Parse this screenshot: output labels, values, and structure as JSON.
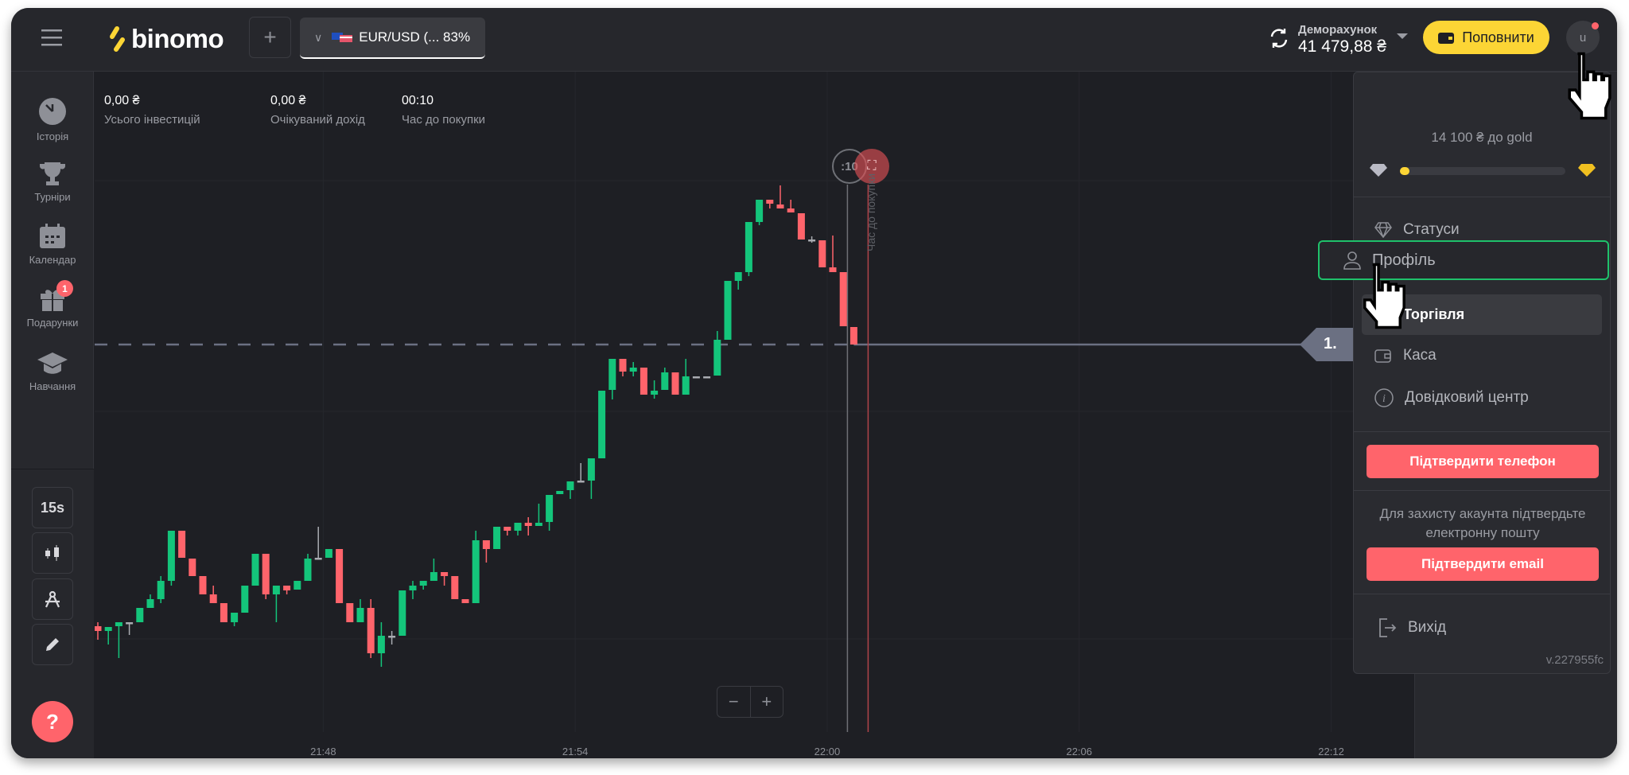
{
  "header": {
    "logo": "binomo",
    "add_tab": "+",
    "pair_label": "EUR/USD (... 83%",
    "account_type": "Деморахунок",
    "balance": "41 479,88 ₴",
    "deposit_label": "Поповнити",
    "avatar_letter": "u"
  },
  "stats": [
    {
      "value": "0,00 ₴",
      "label": "Усього інвестицій"
    },
    {
      "value": "0,00 ₴",
      "label": "Очікуваний дохід"
    },
    {
      "value": "00:10",
      "label": "Час до покупки"
    }
  ],
  "sidebar": {
    "items": [
      {
        "label": "Історія",
        "icon": "clock-icon"
      },
      {
        "label": "Турніри",
        "icon": "trophy-icon"
      },
      {
        "label": "Календар",
        "icon": "calendar-icon"
      },
      {
        "label": "Подарунки",
        "icon": "gift-icon",
        "badge": "1"
      },
      {
        "label": "Навчання",
        "icon": "graduation-cap-icon"
      }
    ],
    "timeframe": "15s",
    "help": "?"
  },
  "chart": {
    "timer": ":10",
    "purchase_line_label": "Час до покупки",
    "price_tag": "1.",
    "zoom_out": "−",
    "zoom_in": "+"
  },
  "chart_data": {
    "type": "candlestick",
    "interval": "15s",
    "first_candle_time": "21:42:38",
    "x_ticks": [
      "21:48",
      "21:54",
      "22:00",
      "22:06",
      "22:12"
    ],
    "entry_price": 1.08,
    "colors": {
      "up": "#14c57b",
      "down": "#ff646b",
      "flat": "#a9abb1"
    },
    "candles_ohlc": [
      [
        1.07646,
        1.07651,
        1.07629,
        1.0764
      ],
      [
        1.0764,
        1.07645,
        1.07623,
        1.07645
      ],
      [
        1.07646,
        1.07651,
        1.07606,
        1.07651
      ],
      [
        1.07651,
        1.07651,
        1.07635,
        1.07651
      ],
      [
        1.07651,
        1.07669,
        1.07651,
        1.07669
      ],
      [
        1.07669,
        1.07686,
        1.07669,
        1.0768
      ],
      [
        1.0768,
        1.07709,
        1.07675,
        1.07703
      ],
      [
        1.07703,
        1.07766,
        1.07697,
        1.07766
      ],
      [
        1.07766,
        1.07766,
        1.07732,
        1.07732
      ],
      [
        1.07731,
        1.07731,
        1.07709,
        1.07709
      ],
      [
        1.07709,
        1.07709,
        1.07686,
        1.07686
      ],
      [
        1.07686,
        1.07697,
        1.07675,
        1.07675
      ],
      [
        1.07675,
        1.07675,
        1.07651,
        1.07651
      ],
      [
        1.07651,
        1.07663,
        1.07646,
        1.07663
      ],
      [
        1.07663,
        1.07697,
        1.07663,
        1.07697
      ],
      [
        1.07697,
        1.07737,
        1.07697,
        1.07737
      ],
      [
        1.07737,
        1.07737,
        1.0768,
        1.07686
      ],
      [
        1.07686,
        1.07697,
        1.07651,
        1.07697
      ],
      [
        1.07697,
        1.07697,
        1.07686,
        1.07691
      ],
      [
        1.07692,
        1.07703,
        1.07692,
        1.07703
      ],
      [
        1.07703,
        1.07737,
        1.07703,
        1.07731
      ],
      [
        1.07732,
        1.07771,
        1.07732,
        1.07732
      ],
      [
        1.07732,
        1.07743,
        1.07732,
        1.07743
      ],
      [
        1.07743,
        1.07743,
        1.07675,
        1.07675
      ],
      [
        1.07675,
        1.07675,
        1.07651,
        1.07651
      ],
      [
        1.07651,
        1.0768,
        1.07651,
        1.07669
      ],
      [
        1.07669,
        1.0768,
        1.07606,
        1.07612
      ],
      [
        1.07612,
        1.07651,
        1.07595,
        1.07634
      ],
      [
        1.07634,
        1.0764,
        1.07623,
        1.07634
      ],
      [
        1.07634,
        1.07691,
        1.07634,
        1.07691
      ],
      [
        1.07691,
        1.07703,
        1.0768,
        1.07697
      ],
      [
        1.07697,
        1.07703,
        1.07692,
        1.07703
      ],
      [
        1.07703,
        1.07731,
        1.07703,
        1.07714
      ],
      [
        1.07714,
        1.07714,
        1.07697,
        1.07709
      ],
      [
        1.07709,
        1.07709,
        1.0768,
        1.0768
      ],
      [
        1.0768,
        1.0768,
        1.07675,
        1.07675
      ],
      [
        1.07675,
        1.07766,
        1.07675,
        1.07754
      ],
      [
        1.07754,
        1.07754,
        1.07726,
        1.07743
      ],
      [
        1.07743,
        1.07771,
        1.07743,
        1.07771
      ],
      [
        1.07771,
        1.07771,
        1.0776,
        1.07766
      ],
      [
        1.07766,
        1.07776,
        1.0776,
        1.07776
      ],
      [
        1.07776,
        1.07783,
        1.0776,
        1.07772
      ],
      [
        1.07772,
        1.078,
        1.07772,
        1.07776
      ],
      [
        1.07777,
        1.07811,
        1.07766,
        1.07811
      ],
      [
        1.07812,
        1.07816,
        1.07812,
        1.07816
      ],
      [
        1.07817,
        1.07828,
        1.07806,
        1.07828
      ],
      [
        1.07829,
        1.07851,
        1.07829,
        1.07829
      ],
      [
        1.07829,
        1.07857,
        1.07806,
        1.07857
      ],
      [
        1.07857,
        1.07942,
        1.07857,
        1.07942
      ],
      [
        1.07943,
        1.07982,
        1.07931,
        1.07982
      ],
      [
        1.07982,
        1.07982,
        1.0796,
        1.07966
      ],
      [
        1.07966,
        1.07978,
        1.0796,
        1.07971
      ],
      [
        1.07971,
        1.07971,
        1.07937,
        1.07937
      ],
      [
        1.07937,
        1.07955,
        1.07932,
        1.07942
      ],
      [
        1.07943,
        1.07971,
        1.07943,
        1.07965
      ],
      [
        1.07965,
        1.07965,
        1.07937,
        1.07937
      ],
      [
        1.07937,
        1.07982,
        1.07937,
        1.0796
      ],
      [
        1.0796,
        1.0796,
        1.0796,
        1.0796
      ],
      [
        1.0796,
        1.0796,
        1.0796,
        1.0796
      ],
      [
        1.07961,
        1.08017,
        1.07961,
        1.08006
      ],
      [
        1.08006,
        1.0808,
        1.08006,
        1.0808
      ],
      [
        1.0808,
        1.08091,
        1.08069,
        1.08091
      ],
      [
        1.08091,
        1.08154,
        1.08086,
        1.08154
      ],
      [
        1.08154,
        1.08182,
        1.0815,
        1.08182
      ],
      [
        1.08182,
        1.08182,
        1.08171,
        1.08177
      ],
      [
        1.08176,
        1.082,
        1.08171,
        1.08171
      ],
      [
        1.08171,
        1.08182,
        1.08166,
        1.08166
      ],
      [
        1.08165,
        1.08165,
        1.08132,
        1.08132
      ],
      [
        1.08132,
        1.08136,
        1.08128,
        1.08132
      ],
      [
        1.08131,
        1.08131,
        1.08097,
        1.08097
      ],
      [
        1.08097,
        1.08137,
        1.08091,
        1.08091
      ],
      [
        1.08091,
        1.08091,
        1.08023,
        1.08023
      ],
      [
        1.08022,
        1.08022,
        1.08,
        1.08
      ]
    ]
  },
  "menu": {
    "gold_progress_text": "14 100 ₴ до gold",
    "gold_progress_fraction": 0.06,
    "items": [
      {
        "label": "Статуси",
        "icon": "diamond-icon"
      },
      {
        "label": "Профіль",
        "icon": "user-icon"
      },
      {
        "label": "Торгівля",
        "icon": "trading-icon"
      },
      {
        "label": "Каса",
        "icon": "wallet-icon"
      },
      {
        "label": "Довідковий центр",
        "icon": "info-icon"
      }
    ],
    "confirm_phone": "Підтвердити телефон",
    "email_hint": "Для захисту акаунта підтвердьте електронну пошту",
    "confirm_email": "Підтвердити email",
    "logout": "Вихід",
    "version": "v.227955fc"
  },
  "colors": {
    "accent_yellow": "#fcd535",
    "highlight_green": "#1fc16b",
    "danger": "#ff646b",
    "up": "#14c57b"
  }
}
